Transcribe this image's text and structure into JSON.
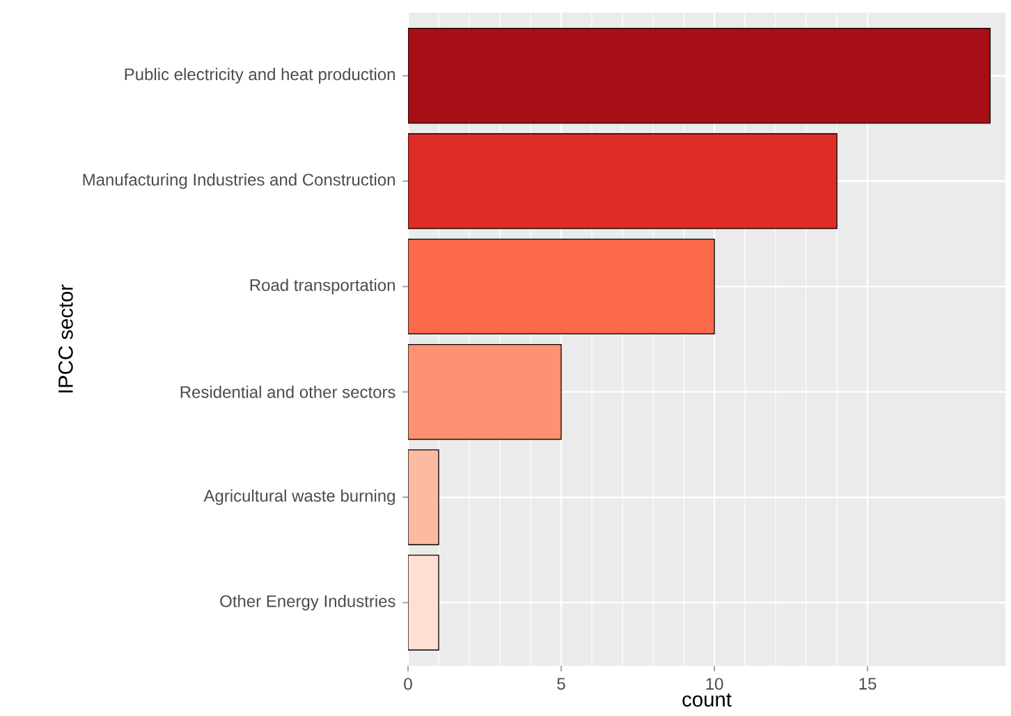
{
  "chart_data": {
    "type": "bar",
    "orientation": "horizontal",
    "xlabel": "count",
    "ylabel": "IPCC sector",
    "categories": [
      "Public electricity and heat production",
      "Manufacturing Industries and Construction",
      "Road transportation",
      "Residential and other sectors",
      "Agricultural waste burning",
      "Other Energy Industries"
    ],
    "values": [
      19,
      14,
      10,
      5,
      1,
      1
    ],
    "colors": [
      "#a50f15",
      "#de2d26",
      "#fb6a4a",
      "#fc9272",
      "#fcbba1",
      "#fee0d2"
    ],
    "xlim": [
      0,
      19.5
    ],
    "xticks": [
      0,
      5,
      10,
      15
    ],
    "grid": true
  }
}
